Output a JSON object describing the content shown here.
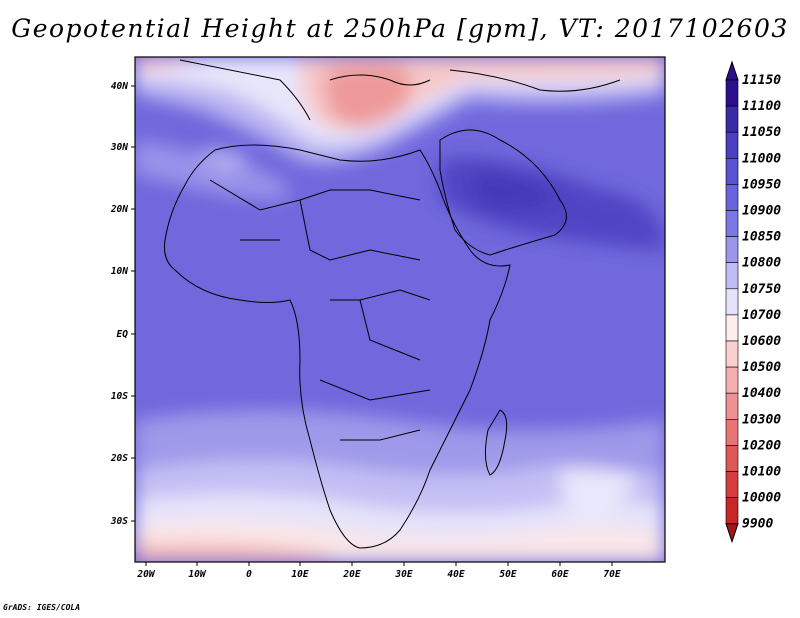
{
  "title": "Geopotential Height at 250hPa [gpm], VT: 2017102603",
  "footer": "GrADS: IGES/COLA",
  "lon_labels": [
    "20W",
    "10W",
    "0",
    "10E",
    "20E",
    "30E",
    "40E",
    "50E",
    "60E",
    "70E"
  ],
  "lat_labels": [
    "40N",
    "30N",
    "20N",
    "10N",
    "EQ",
    "10S",
    "20S",
    "30S"
  ],
  "colorbar": {
    "levels": [
      "11150",
      "11100",
      "11050",
      "11000",
      "10950",
      "10900",
      "10850",
      "10800",
      "10750",
      "10700",
      "10600",
      "10500",
      "10400",
      "10300",
      "10200",
      "10100",
      "10000",
      "9900"
    ],
    "colors": [
      "#2b0f8f",
      "#3a2aa8",
      "#4a3fc0",
      "#5a52d2",
      "#6b63de",
      "#7d76e6",
      "#9b96ec",
      "#bfbcf3",
      "#e4e3fa",
      "#fdeded",
      "#f9cfcf",
      "#f4b0b0",
      "#ee9191",
      "#e87474",
      "#e05757",
      "#d63d3d",
      "#c62828",
      "#a01818"
    ]
  },
  "map": {
    "region": "Africa and Middle East",
    "lon_range": [
      -22,
      80
    ],
    "lat_range": [
      -37,
      45
    ],
    "field": "250hPa geopotential height (gpm)"
  }
}
